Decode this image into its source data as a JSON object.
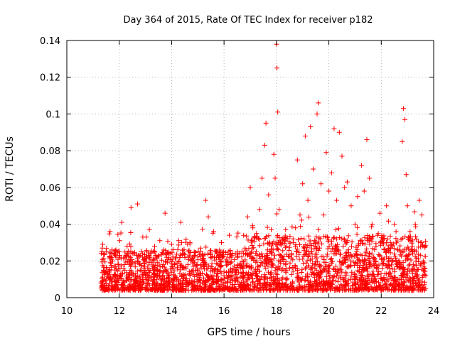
{
  "chart_data": {
    "type": "scatter",
    "title": "Day 364 of 2015, Rate Of TEC Index for receiver p182",
    "xlabel": "GPS time / hours",
    "ylabel": "ROTI / TECUs",
    "xlim": [
      10,
      24
    ],
    "ylim": [
      0,
      0.14
    ],
    "x_ticks": [
      10,
      12,
      14,
      16,
      18,
      20,
      22,
      24
    ],
    "x_tick_labels": [
      "10",
      "12",
      "14",
      "16",
      "18",
      "20",
      "22",
      "24"
    ],
    "y_ticks": [
      0,
      0.02,
      0.04,
      0.06,
      0.08,
      0.1,
      0.12,
      0.14
    ],
    "y_tick_labels": [
      "0",
      "0.02",
      "0.04",
      "0.06",
      "0.08",
      "0.1",
      "0.12",
      "0.14"
    ],
    "grid": true,
    "marker": "+",
    "marker_color": "#ff0000",
    "series": [
      {
        "name": "ROTI",
        "points": [
          [
            11.3,
            0.008
          ],
          [
            11.35,
            0.027
          ],
          [
            11.4,
            0.015
          ],
          [
            11.5,
            0.025
          ],
          [
            11.6,
            0.011
          ],
          [
            11.65,
            0.036
          ],
          [
            11.75,
            0.02
          ],
          [
            11.85,
            0.012
          ],
          [
            11.9,
            0.009
          ],
          [
            12.0,
            0.022
          ],
          [
            12.1,
            0.041
          ],
          [
            12.2,
            0.018
          ],
          [
            12.3,
            0.028
          ],
          [
            12.4,
            0.013
          ],
          [
            12.45,
            0.049
          ],
          [
            12.55,
            0.024
          ],
          [
            12.65,
            0.006
          ],
          [
            12.7,
            0.051
          ],
          [
            12.8,
            0.015
          ],
          [
            12.9,
            0.033
          ],
          [
            13.0,
            0.012
          ],
          [
            13.05,
            0.005
          ],
          [
            13.15,
            0.037
          ],
          [
            13.25,
            0.02
          ],
          [
            13.35,
            0.028
          ],
          [
            13.45,
            0.013
          ],
          [
            13.55,
            0.031
          ],
          [
            13.65,
            0.017
          ],
          [
            13.75,
            0.046
          ],
          [
            13.8,
            0.022
          ],
          [
            13.9,
            0.012
          ],
          [
            14.0,
            0.029
          ],
          [
            14.1,
            0.018
          ],
          [
            14.2,
            0.01
          ],
          [
            14.35,
            0.041
          ],
          [
            14.45,
            0.024
          ],
          [
            14.55,
            0.016
          ],
          [
            14.7,
            0.03
          ],
          [
            14.85,
            0.02
          ],
          [
            15.0,
            0.012
          ],
          [
            15.1,
            0.027
          ],
          [
            15.2,
            0.018
          ],
          [
            15.3,
            0.053
          ],
          [
            15.4,
            0.044
          ],
          [
            15.5,
            0.022
          ],
          [
            15.6,
            0.036
          ],
          [
            15.75,
            0.015
          ],
          [
            15.9,
            0.03
          ],
          [
            16.0,
            0.012
          ],
          [
            16.1,
            0.021
          ],
          [
            16.2,
            0.034
          ],
          [
            16.35,
            0.016
          ],
          [
            16.5,
            0.025
          ],
          [
            16.65,
            0.013
          ],
          [
            16.8,
            0.027
          ],
          [
            16.9,
            0.044
          ],
          [
            17.0,
            0.06
          ],
          [
            17.1,
            0.038
          ],
          [
            17.25,
            0.02
          ],
          [
            17.35,
            0.048
          ],
          [
            17.45,
            0.065
          ],
          [
            17.55,
            0.083
          ],
          [
            17.6,
            0.095
          ],
          [
            17.7,
            0.056
          ],
          [
            17.8,
            0.037
          ],
          [
            17.9,
            0.078
          ],
          [
            17.95,
            0.065
          ],
          [
            18.0,
            0.138
          ],
          [
            18.02,
            0.125
          ],
          [
            18.05,
            0.101
          ],
          [
            18.1,
            0.048
          ],
          [
            18.2,
            0.022
          ],
          [
            18.35,
            0.037
          ],
          [
            18.5,
            0.016
          ],
          [
            18.65,
            0.03
          ],
          [
            18.8,
            0.075
          ],
          [
            18.9,
            0.045
          ],
          [
            19.0,
            0.062
          ],
          [
            19.1,
            0.088
          ],
          [
            19.2,
            0.053
          ],
          [
            19.3,
            0.093
          ],
          [
            19.4,
            0.07
          ],
          [
            19.55,
            0.1
          ],
          [
            19.6,
            0.106
          ],
          [
            19.7,
            0.062
          ],
          [
            19.8,
            0.045
          ],
          [
            19.9,
            0.079
          ],
          [
            20.0,
            0.058
          ],
          [
            20.1,
            0.068
          ],
          [
            20.2,
            0.092
          ],
          [
            20.3,
            0.053
          ],
          [
            20.4,
            0.09
          ],
          [
            20.5,
            0.077
          ],
          [
            20.6,
            0.06
          ],
          [
            20.7,
            0.063
          ],
          [
            20.85,
            0.05
          ],
          [
            21.0,
            0.04
          ],
          [
            21.1,
            0.055
          ],
          [
            21.25,
            0.072
          ],
          [
            21.35,
            0.058
          ],
          [
            21.45,
            0.086
          ],
          [
            21.55,
            0.065
          ],
          [
            21.65,
            0.04
          ],
          [
            21.8,
            0.028
          ],
          [
            21.95,
            0.046
          ],
          [
            22.1,
            0.032
          ],
          [
            22.2,
            0.05
          ],
          [
            22.35,
            0.03
          ],
          [
            22.5,
            0.04
          ],
          [
            22.65,
            0.02
          ],
          [
            22.8,
            0.085
          ],
          [
            22.85,
            0.103
          ],
          [
            22.9,
            0.097
          ],
          [
            22.95,
            0.067
          ],
          [
            23.0,
            0.05
          ],
          [
            23.1,
            0.036
          ],
          [
            23.2,
            0.025
          ],
          [
            23.3,
            0.04
          ],
          [
            23.45,
            0.053
          ],
          [
            23.55,
            0.045
          ],
          [
            23.6,
            0.02
          ],
          [
            23.7,
            0.012
          ]
        ]
      }
    ]
  }
}
